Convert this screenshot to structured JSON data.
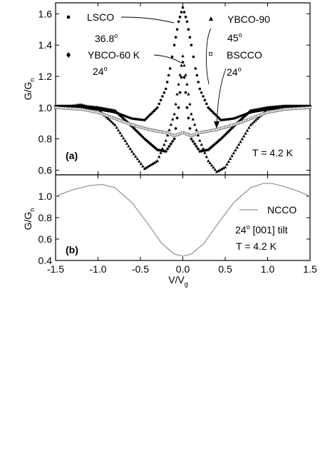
{
  "chart_data": [
    {
      "panel": "(a)",
      "type": "scatter",
      "ylabel": "G/G",
      "ylabel_sub": "n",
      "xlim": [
        -1.5,
        1.5
      ],
      "ylim": [
        0.57,
        1.67
      ],
      "x_ticks": [
        "-1.5",
        "-1.0",
        "-0.5",
        "0.0",
        "0.5",
        "1.0",
        "1.5"
      ],
      "y_ticks": [
        "0.6",
        "0.8",
        "1.0",
        "1.2",
        "1.4",
        "1.6"
      ],
      "temperature": "T = 4.2 K",
      "series": [
        {
          "name": "LSCO",
          "angle": "36.8",
          "marker": "dot",
          "points": [
            [
              -1.5,
              1.0
            ],
            [
              -1.2,
              1.0
            ],
            [
              -1.0,
              0.99
            ],
            [
              -0.8,
              0.97
            ],
            [
              -0.6,
              0.93
            ],
            [
              -0.45,
              0.92
            ],
            [
              -0.3,
              1.0
            ],
            [
              -0.2,
              1.12
            ],
            [
              -0.15,
              1.25
            ],
            [
              -0.1,
              1.4
            ],
            [
              -0.05,
              1.55
            ],
            [
              0.0,
              1.64
            ],
            [
              0.05,
              1.55
            ],
            [
              0.1,
              1.4
            ],
            [
              0.15,
              1.25
            ],
            [
              0.2,
              1.12
            ],
            [
              0.3,
              1.0
            ],
            [
              0.45,
              0.92
            ],
            [
              0.6,
              0.93
            ],
            [
              0.8,
              0.97
            ],
            [
              1.0,
              0.99
            ],
            [
              1.2,
              1.0
            ],
            [
              1.5,
              1.0
            ]
          ]
        },
        {
          "name": "YBCO-60 K",
          "angle": "24",
          "marker": "diamond",
          "points": [
            [
              -1.5,
              1.01
            ],
            [
              -1.2,
              1.01
            ],
            [
              -1.0,
              1.0
            ],
            [
              -0.8,
              0.98
            ],
            [
              -0.6,
              0.88
            ],
            [
              -0.45,
              0.8
            ],
            [
              -0.3,
              0.73
            ],
            [
              -0.2,
              0.72
            ],
            [
              -0.1,
              0.8
            ],
            [
              -0.05,
              1.0
            ],
            [
              0.0,
              1.29
            ],
            [
              0.05,
              1.0
            ],
            [
              0.1,
              0.8
            ],
            [
              0.2,
              0.72
            ],
            [
              0.3,
              0.73
            ],
            [
              0.45,
              0.8
            ],
            [
              0.6,
              0.88
            ],
            [
              0.8,
              0.98
            ],
            [
              1.0,
              1.0
            ],
            [
              1.2,
              1.01
            ],
            [
              1.5,
              1.01
            ]
          ]
        },
        {
          "name": "YBCO-90",
          "angle": "45",
          "marker": "triangle",
          "points": [
            [
              -1.5,
              1.0
            ],
            [
              -1.2,
              1.02
            ],
            [
              -1.0,
              0.99
            ],
            [
              -0.8,
              0.89
            ],
            [
              -0.6,
              0.72
            ],
            [
              -0.45,
              0.61
            ],
            [
              -0.3,
              0.66
            ],
            [
              -0.2,
              0.79
            ],
            [
              -0.1,
              0.96
            ],
            [
              -0.05,
              1.15
            ],
            [
              0.0,
              1.33
            ],
            [
              0.05,
              1.15
            ],
            [
              0.1,
              0.96
            ],
            [
              0.2,
              0.79
            ],
            [
              0.3,
              0.66
            ],
            [
              0.4,
              0.59
            ],
            [
              0.5,
              0.62
            ],
            [
              0.6,
              0.71
            ],
            [
              0.8,
              0.89
            ],
            [
              1.0,
              0.99
            ],
            [
              1.2,
              1.01
            ],
            [
              1.5,
              1.0
            ]
          ]
        },
        {
          "name": "BSCCO",
          "angle": "24",
          "marker": "open-square",
          "points": [
            [
              -1.5,
              1.0
            ],
            [
              -1.2,
              0.99
            ],
            [
              -1.0,
              0.97
            ],
            [
              -0.8,
              0.93
            ],
            [
              -0.6,
              0.89
            ],
            [
              -0.4,
              0.86
            ],
            [
              -0.2,
              0.84
            ],
            [
              -0.1,
              0.82
            ],
            [
              0.0,
              0.84
            ],
            [
              0.1,
              0.82
            ],
            [
              0.2,
              0.84
            ],
            [
              0.4,
              0.86
            ],
            [
              0.6,
              0.89
            ],
            [
              0.8,
              0.93
            ],
            [
              1.0,
              0.97
            ],
            [
              1.2,
              0.99
            ],
            [
              1.5,
              1.0
            ]
          ]
        }
      ]
    },
    {
      "panel": "(b)",
      "type": "line",
      "xlabel": "V/V",
      "xlabel_sub": "g",
      "ylabel": "G/G",
      "ylabel_sub": "n",
      "xlim": [
        -1.5,
        1.5
      ],
      "ylim": [
        0.4,
        1.2
      ],
      "x_ticks": [
        "-1.5",
        "-1.0",
        "-0.5",
        "0.0",
        "0.5",
        "1.0",
        "1.5"
      ],
      "y_ticks": [
        "0.4",
        "0.6",
        "0.8",
        "1.0"
      ],
      "legend_label": "NCCO",
      "annotation_angle": "24",
      "annotation_tilt": " [001] tilt",
      "temperature": "T = 4.2 K",
      "line_color": "#999999",
      "series": [
        {
          "name": "NCCO",
          "points": [
            [
              -1.5,
              1.0
            ],
            [
              -1.3,
              1.06
            ],
            [
              -1.1,
              1.1
            ],
            [
              -0.95,
              1.11
            ],
            [
              -0.8,
              1.08
            ],
            [
              -0.6,
              0.94
            ],
            [
              -0.4,
              0.73
            ],
            [
              -0.25,
              0.56
            ],
            [
              -0.1,
              0.46
            ],
            [
              0.0,
              0.44
            ],
            [
              0.1,
              0.46
            ],
            [
              0.25,
              0.56
            ],
            [
              0.4,
              0.73
            ],
            [
              0.6,
              0.94
            ],
            [
              0.8,
              1.08
            ],
            [
              0.95,
              1.12
            ],
            [
              1.05,
              1.12
            ],
            [
              1.2,
              1.09
            ],
            [
              1.35,
              1.05
            ],
            [
              1.5,
              1.0
            ]
          ]
        }
      ]
    }
  ]
}
